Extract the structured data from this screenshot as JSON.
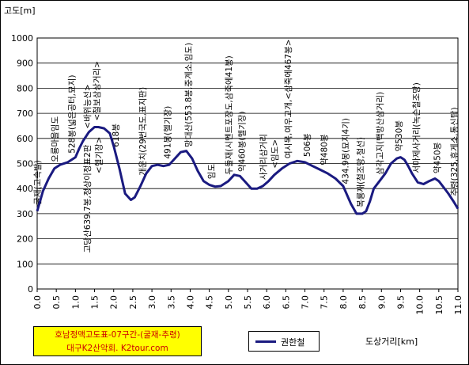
{
  "chart_data": {
    "type": "line",
    "ylabel": "고도[m]",
    "xlabel": "도상거리[km]",
    "xlim": [
      0,
      11.0
    ],
    "ylim": [
      0,
      1000
    ],
    "grid": true,
    "legend_position": "bottom",
    "x_ticks": [
      "0.0",
      "0.5",
      "1.0",
      "1.5",
      "2.0",
      "2.5",
      "3.0",
      "3.5",
      "4.0",
      "4.5",
      "5.0",
      "5.5",
      "6.0",
      "6.5",
      "7.0",
      "7.5",
      "8.0",
      "8.5",
      "9.0",
      "9.5",
      "10.0",
      "10.5",
      "11.0"
    ],
    "y_ticks": [
      "0",
      "100",
      "200",
      "300",
      "400",
      "500",
      "600",
      "700",
      "800",
      "900",
      "1000"
    ],
    "series": [
      {
        "name": "권한철",
        "color": "#1a1a80",
        "x": [
          0.0,
          0.15,
          0.3,
          0.45,
          0.6,
          0.8,
          1.0,
          1.1,
          1.2,
          1.35,
          1.5,
          1.6,
          1.75,
          1.9,
          2.0,
          2.15,
          2.3,
          2.45,
          2.55,
          2.7,
          2.85,
          3.0,
          3.15,
          3.3,
          3.45,
          3.6,
          3.75,
          3.9,
          4.05,
          4.2,
          4.35,
          4.5,
          4.65,
          4.8,
          5.0,
          5.15,
          5.3,
          5.45,
          5.6,
          5.75,
          5.9,
          6.05,
          6.2,
          6.4,
          6.6,
          6.8,
          7.0,
          7.2,
          7.4,
          7.6,
          7.8,
          8.0,
          8.2,
          8.35,
          8.5,
          8.6,
          8.7,
          8.8,
          8.95,
          9.1,
          9.25,
          9.4,
          9.5,
          9.6,
          9.7,
          9.8,
          9.95,
          10.1,
          10.25,
          10.4,
          10.5,
          10.6,
          10.75,
          10.9,
          11.0
        ],
        "y": [
          310,
          390,
          440,
          480,
          495,
          505,
          525,
          560,
          590,
          625,
          645,
          645,
          640,
          620,
          570,
          480,
          380,
          355,
          365,
          410,
          460,
          490,
          495,
          490,
          495,
          520,
          545,
          550,
          520,
          470,
          430,
          415,
          408,
          410,
          430,
          455,
          450,
          425,
          400,
          400,
          410,
          430,
          455,
          480,
          500,
          510,
          505,
          490,
          475,
          460,
          440,
          410,
          340,
          300,
          300,
          310,
          350,
          400,
          430,
          460,
          500,
          520,
          525,
          515,
          490,
          460,
          425,
          418,
          430,
          440,
          430,
          410,
          380,
          345,
          320
        ]
      }
    ],
    "annotations": [
      {
        "x": 0.0,
        "text": "굴재(고속발)"
      },
      {
        "x": 0.45,
        "text": "오룡마을임도"
      },
      {
        "x": 0.9,
        "text": "528봉(넓은공터,묘지)"
      },
      {
        "x": 1.3,
        "text": "<바위능선>"
      },
      {
        "x": 1.55,
        "text": "<철보삼상거리>"
      },
      {
        "x": 2.05,
        "text": "618봉"
      },
      {
        "x": 1.3,
        "text": "고당산639.7봉,정상이정표2판"
      },
      {
        "x": 1.6,
        "text": "<헬기장>"
      },
      {
        "x": 2.75,
        "text": "개운치(29번국도,표지판)"
      },
      {
        "x": 3.4,
        "text": "491봉(헬기장)"
      },
      {
        "x": 3.95,
        "text": "망대산(553.8봉,중계소,임도)"
      },
      {
        "x": 4.55,
        "text": "임도"
      },
      {
        "x": 5.0,
        "text": "두들재(시멘트포장도,삼죽에41봉)"
      },
      {
        "x": 5.35,
        "text": "약460봉(헬기장)"
      },
      {
        "x": 5.9,
        "text": "사거리삼거리"
      },
      {
        "x": 6.2,
        "text": "<임도>"
      },
      {
        "x": 6.55,
        "text": "여시목,여우고개,<삼죽에467봉>"
      },
      {
        "x": 7.05,
        "text": "506봉"
      },
      {
        "x": 7.5,
        "text": "약480봉"
      },
      {
        "x": 8.05,
        "text": "434.9봉(묘지4기)"
      },
      {
        "x": 8.45,
        "text": "복룡재(철조망,철선)"
      },
      {
        "x": 8.95,
        "text": "삼각고지(백방산삼거리)"
      },
      {
        "x": 9.45,
        "text": "약530봉"
      },
      {
        "x": 9.9,
        "text": "서마제사거리(녹슨철조망)"
      },
      {
        "x": 10.45,
        "text": "약450봉"
      },
      {
        "x": 10.9,
        "text": "추령(325,휴게소,통신탑)"
      }
    ]
  },
  "info": {
    "line1": "호남정맥고도표-07구간-(굴재-추령)",
    "line2": "대구K2산악회. K2tour.com"
  },
  "legend": {
    "label": "권한철"
  },
  "axis_title_x": "도상거리[km]"
}
